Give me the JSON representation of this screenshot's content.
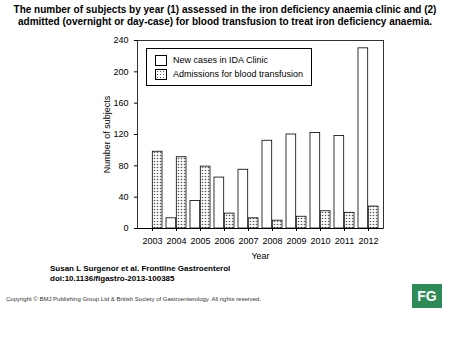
{
  "chart_data": {
    "type": "bar",
    "title": "The number of subjects by year (1) assessed in the iron deficiency anaemia clinic and (2) admitted (overnight or day-case) for blood transfusion to treat iron deficiency anaemia.",
    "categories": [
      "2003",
      "2004",
      "2005",
      "2006",
      "2007",
      "2008",
      "2009",
      "2010",
      "2011",
      "2012"
    ],
    "series": [
      {
        "name": "New cases in IDA Clinic",
        "color": "#ffffff",
        "values": [
          0,
          13,
          35,
          65,
          75,
          112,
          120,
          122,
          118,
          230
        ]
      },
      {
        "name": "Admissions for blood transfusion",
        "color": "#555555",
        "marker": "hatch",
        "values": [
          98,
          91,
          79,
          19,
          13,
          10,
          15,
          22,
          20,
          28
        ]
      }
    ],
    "x_label": "Year",
    "y_label": "Number of subjects",
    "ylim": [
      0,
      240
    ],
    "yticks": [
      0,
      40,
      80,
      120,
      160,
      200,
      240
    ],
    "legend": "top-left",
    "caption": [
      "Susan L Surgenor et al. Frontline Gastroenterol",
      "doi:10.1136/flgastro-2013-100385"
    ],
    "footer": "Copyright © BMJ Publishing Group Ltd & British Society of Gastroenterology. All rights reserved.",
    "logo": "FG"
  }
}
